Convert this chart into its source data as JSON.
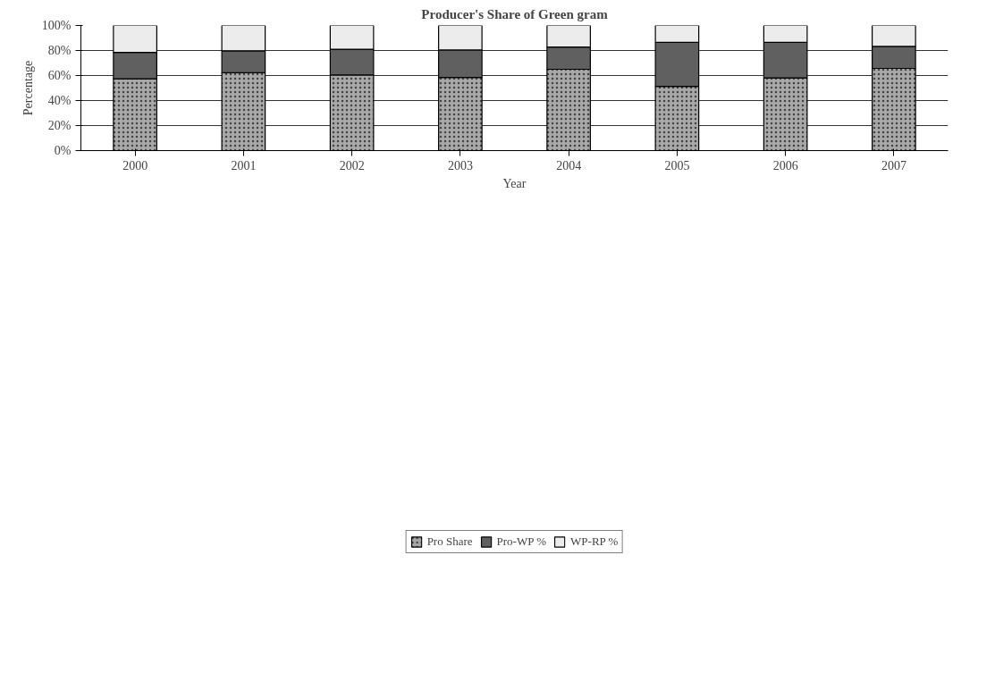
{
  "chart_data": {
    "type": "bar",
    "stacked": true,
    "title": "Producer's Share of Green gram",
    "xlabel": "Year",
    "ylabel": "Percentage",
    "categories": [
      "2000",
      "2001",
      "2002",
      "2003",
      "2004",
      "2005",
      "2006",
      "2007"
    ],
    "series": [
      {
        "name": "Pro Share",
        "color": "#a8a8a8",
        "values": [
          57.4,
          62.2,
          60.4,
          58.5,
          65.0,
          51.3,
          58.1,
          65.7
        ]
      },
      {
        "name": "Pro-WP %",
        "color": "#606060",
        "values": [
          21.1,
          17.6,
          20.6,
          21.9,
          17.8,
          35.2,
          28.4,
          17.6
        ]
      },
      {
        "name": "WP-RP %",
        "color": "#ececec",
        "values": [
          21.5,
          20.2,
          19.0,
          19.6,
          17.2,
          13.5,
          13.5,
          16.7
        ]
      }
    ],
    "ylim": [
      0,
      100
    ],
    "yticks": [
      {
        "value": 0,
        "label": "0%"
      },
      {
        "value": 20,
        "label": "20%"
      },
      {
        "value": 40,
        "label": "40%"
      },
      {
        "value": 60,
        "label": "60%"
      },
      {
        "value": 80,
        "label": "80%"
      },
      {
        "value": 100,
        "label": "100%"
      }
    ],
    "grid": "y",
    "legend": "bottom"
  }
}
